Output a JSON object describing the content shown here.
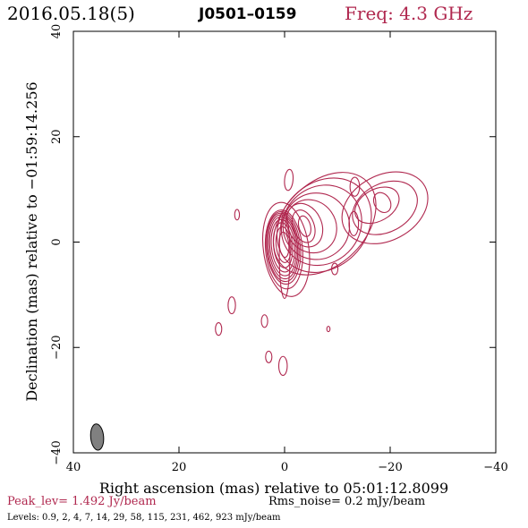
{
  "header": {
    "date": "2016.05.18(5)",
    "source": "J0501–0159",
    "freq": "Freq: 4.3 GHz"
  },
  "footer": {
    "peak": "Peak_lev=  1.492 Jy/beam",
    "rms": "Rms_noise=  0.2 mJy/beam",
    "levels": "Levels: 0.9,    2,    4,    7,   14,   29,   58,  115,  231,  462,  923  mJy/beam"
  },
  "colors": {
    "contour": "#b0284f",
    "beam": "#808080",
    "text_accent": "#b0284f"
  },
  "chart_data": {
    "type": "contour",
    "xlabel": "Right ascension (mas) relative to 05:01:12.8099",
    "ylabel": "Declination (mas) relative to −01:59:14.256",
    "xlim": [
      40,
      -40
    ],
    "ylim": [
      -40,
      40
    ],
    "x_ticks": [
      40,
      20,
      0,
      -20,
      -40
    ],
    "x_tick_labels": [
      "40",
      "20",
      "0",
      "−20",
      "−40"
    ],
    "y_ticks": [
      -40,
      -20,
      0,
      20,
      40
    ],
    "y_tick_labels": [
      "−40",
      "−20",
      "0",
      "20",
      "40"
    ],
    "levels_mJy": [
      0.9,
      2,
      4,
      7,
      14,
      29,
      58,
      115,
      231,
      462,
      923
    ],
    "peak_Jy_per_beam": 1.492,
    "rms_mJy_per_beam": 0.2,
    "beam": {
      "x": 35.5,
      "y": -37,
      "major_mas": 3.8,
      "minor_mas": 1.6,
      "pa_deg": -5
    },
    "contours": [
      {
        "x": 0.1,
        "y": -0.5,
        "rx": 0.9,
        "ry": 2.4,
        "rot": -5
      },
      {
        "x": 0.2,
        "y": -0.5,
        "rx": 1.4,
        "ry": 3.4,
        "rot": -5
      },
      {
        "x": 0.3,
        "y": -0.6,
        "rx": 1.8,
        "ry": 4.3,
        "rot": -5
      },
      {
        "x": 0.3,
        "y": -0.7,
        "rx": 2.2,
        "ry": 5.0,
        "rot": -5
      },
      {
        "x": 0.3,
        "y": -0.8,
        "rx": 2.5,
        "ry": 5.6,
        "rot": -5
      },
      {
        "x": 0.3,
        "y": -0.9,
        "rx": 2.75,
        "ry": 6.1,
        "rot": -5
      },
      {
        "x": 0.3,
        "y": -1.0,
        "rx": 3.0,
        "ry": 6.5,
        "rot": -5
      },
      {
        "x": 0.2,
        "y": -1.1,
        "rx": 3.2,
        "ry": 6.9,
        "rot": -5
      },
      {
        "x": 0.1,
        "y": -1.4,
        "rx": 3.5,
        "ry": 7.5,
        "rot": -5
      },
      {
        "x": -0.3,
        "y": -1.4,
        "rx": 4.3,
        "ry": 9.0,
        "rot": -8
      },
      {
        "x": 0.0,
        "y": -2.5,
        "rx": 1.0,
        "ry": 8.2,
        "rot": 0
      },
      {
        "x": -3.8,
        "y": 3.0,
        "rx": 1.1,
        "ry": 2.0,
        "rot": -15
      },
      {
        "x": -3.6,
        "y": 3.0,
        "rx": 2.0,
        "ry": 3.2,
        "rot": -20
      },
      {
        "x": -3.8,
        "y": 3.2,
        "rx": 3.2,
        "ry": 4.3,
        "rot": -25
      },
      {
        "x": -5.0,
        "y": 3.0,
        "rx": 4.7,
        "ry": 5.2,
        "rot": -35
      },
      {
        "x": -6.0,
        "y": 3.0,
        "rx": 6.3,
        "ry": 6.3,
        "rot": -40
      },
      {
        "x": -7.0,
        "y": 3.2,
        "rx": 8.0,
        "ry": 7.2,
        "rot": -45
      },
      {
        "x": -7.5,
        "y": 3.2,
        "rx": 9.8,
        "ry": 8.0,
        "rot": -45
      },
      {
        "x": -7.6,
        "y": 3.5,
        "rx": 11.3,
        "ry": 7.8,
        "rot": -45
      },
      {
        "x": -13.3,
        "y": 10.5,
        "rx": 0.9,
        "ry": 1.8,
        "rot": 0
      },
      {
        "x": -18.5,
        "y": 7.5,
        "rx": 1.5,
        "ry": 2.0,
        "rot": -30
      },
      {
        "x": -17.5,
        "y": 7.0,
        "rx": 4.5,
        "ry": 3.0,
        "rot": -30
      },
      {
        "x": -19.0,
        "y": 6.5,
        "rx": 6.5,
        "ry": 4.6,
        "rot": -28
      },
      {
        "x": -19.0,
        "y": 6.5,
        "rx": 8.6,
        "ry": 6.2,
        "rot": -28
      },
      {
        "x": -13.1,
        "y": 3.5,
        "rx": 0.9,
        "ry": 2.3,
        "rot": 0
      },
      {
        "x": -0.8,
        "y": 11.8,
        "rx": 0.8,
        "ry": 2.0,
        "rot": 5
      },
      {
        "x": 9.0,
        "y": 5.2,
        "rx": 0.45,
        "ry": 1.0,
        "rot": 0
      },
      {
        "x": -9.5,
        "y": -5.1,
        "rx": 0.6,
        "ry": 1.1,
        "rot": 0
      },
      {
        "x": 10.0,
        "y": -12.0,
        "rx": 0.7,
        "ry": 1.6,
        "rot": 0
      },
      {
        "x": 12.5,
        "y": -16.5,
        "rx": 0.6,
        "ry": 1.2,
        "rot": 0
      },
      {
        "x": 3.8,
        "y": -15.0,
        "rx": 0.6,
        "ry": 1.2,
        "rot": 0
      },
      {
        "x": -8.3,
        "y": -16.5,
        "rx": 0.3,
        "ry": 0.5,
        "rot": 0
      },
      {
        "x": 3.0,
        "y": -21.8,
        "rx": 0.6,
        "ry": 1.1,
        "rot": 0
      },
      {
        "x": 0.3,
        "y": -23.5,
        "rx": 0.8,
        "ry": 1.8,
        "rot": 0
      }
    ]
  }
}
